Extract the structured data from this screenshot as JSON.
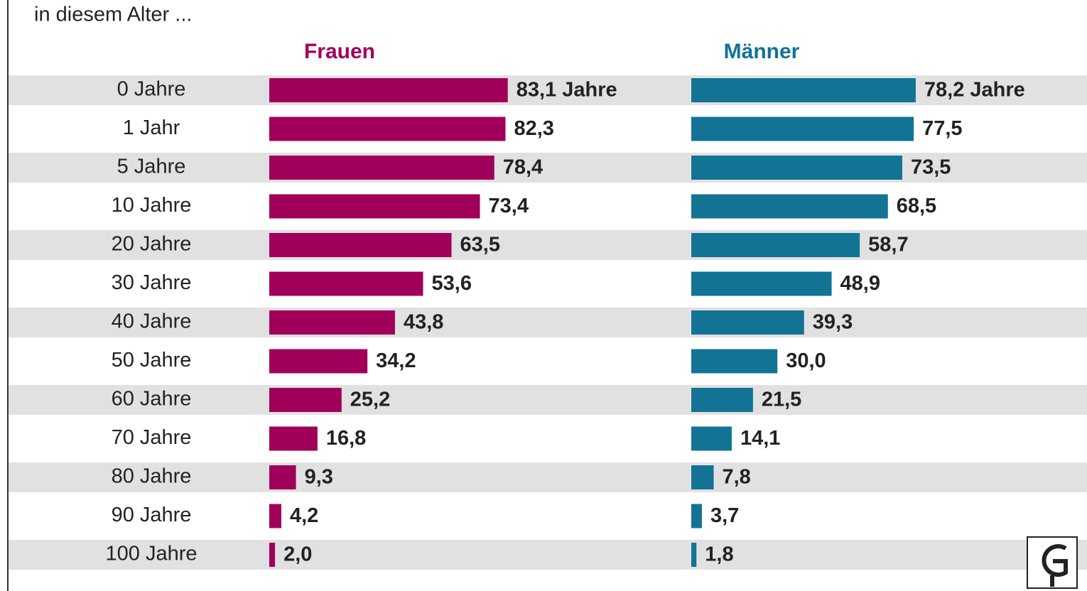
{
  "chart_data": {
    "type": "bar",
    "orientation": "horizontal",
    "subtitle": "in diesem Alter ...",
    "categories": [
      "0 Jahre",
      "1 Jahr",
      "5 Jahre",
      "10 Jahre",
      "20 Jahre",
      "30 Jahre",
      "40 Jahre",
      "50 Jahre",
      "60 Jahre",
      "70 Jahre",
      "80 Jahre",
      "90 Jahre",
      "100 Jahre"
    ],
    "series": [
      {
        "name": "Frauen",
        "color": "#a0005a",
        "values": [
          83.1,
          82.3,
          78.4,
          73.4,
          63.5,
          53.6,
          43.8,
          34.2,
          25.2,
          16.8,
          9.3,
          4.2,
          2.0
        ],
        "value_labels": [
          "83,1 Jahre",
          "82,3",
          "78,4",
          "73,4",
          "63,5",
          "53,6",
          "43,8",
          "34,2",
          "25,2",
          "16,8",
          "9,3",
          "4,2",
          "2,0"
        ]
      },
      {
        "name": "Männer",
        "color": "#127395",
        "values": [
          78.2,
          77.5,
          73.5,
          68.5,
          58.7,
          48.9,
          39.3,
          30.0,
          21.5,
          14.1,
          7.8,
          3.7,
          1.8
        ],
        "value_labels": [
          "78,2 Jahre",
          "77,5",
          "73,5",
          "68,5",
          "58,7",
          "48,9",
          "39,3",
          "30,0",
          "21,5",
          "14,1",
          "7,8",
          "3,7",
          "1,8"
        ]
      }
    ]
  }
}
